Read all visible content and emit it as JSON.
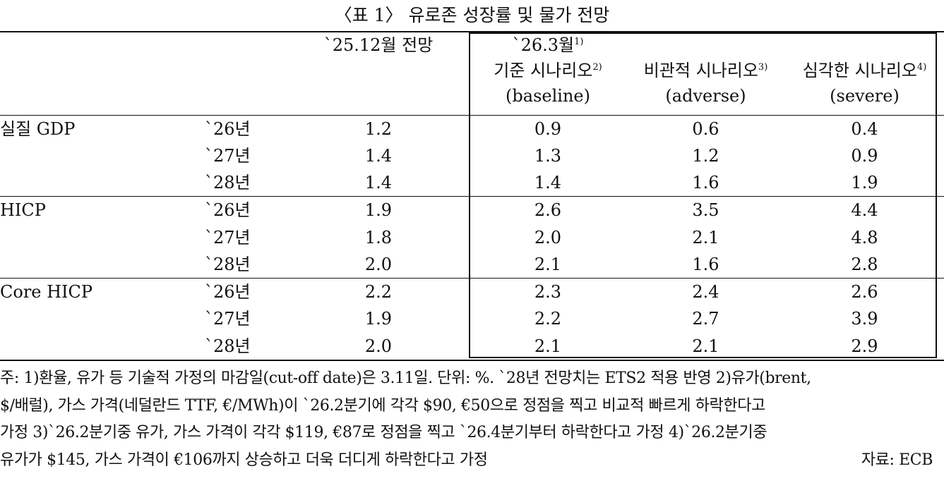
{
  "title": "〈표 1〉 유로존 성장률 및 물가 전망",
  "header": {
    "dec_forecast": "`25.12월 전망",
    "mar_forecast": "`26.3월",
    "mar_forecast_sup": "1)",
    "baseline_ko": "기준 시나리오",
    "baseline_sup": "2)",
    "baseline_en": "(baseline)",
    "adverse_ko": "비관적 시나리오",
    "adverse_sup": "3)",
    "adverse_en": "(adverse)",
    "severe_ko": "심각한 시나리오",
    "severe_sup": "4)",
    "severe_en": "(severe)"
  },
  "groups": [
    {
      "label": "실질 GDP",
      "rows": [
        {
          "year": "`26년",
          "dec": "1.2",
          "baseline": "0.9",
          "adverse": "0.6",
          "severe": "0.4"
        },
        {
          "year": "`27년",
          "dec": "1.4",
          "baseline": "1.3",
          "adverse": "1.2",
          "severe": "0.9"
        },
        {
          "year": "`28년",
          "dec": "1.4",
          "baseline": "1.4",
          "adverse": "1.6",
          "severe": "1.9"
        }
      ]
    },
    {
      "label": "HICP",
      "rows": [
        {
          "year": "`26년",
          "dec": "1.9",
          "baseline": "2.6",
          "adverse": "3.5",
          "severe": "4.4"
        },
        {
          "year": "`27년",
          "dec": "1.8",
          "baseline": "2.0",
          "adverse": "2.1",
          "severe": "4.8"
        },
        {
          "year": "`28년",
          "dec": "2.0",
          "baseline": "2.1",
          "adverse": "1.6",
          "severe": "2.8"
        }
      ]
    },
    {
      "label": "Core HICP",
      "rows": [
        {
          "year": "`26년",
          "dec": "2.2",
          "baseline": "2.3",
          "adverse": "2.4",
          "severe": "2.6"
        },
        {
          "year": "`27년",
          "dec": "1.9",
          "baseline": "2.2",
          "adverse": "2.7",
          "severe": "3.9"
        },
        {
          "year": "`28년",
          "dec": "2.0",
          "baseline": "2.1",
          "adverse": "2.1",
          "severe": "2.9"
        }
      ]
    }
  ],
  "notes": {
    "line1": "주: 1)환율, 유가 등 기술적 가정의 마감일(cut-off date)은 3.11일. 단위: %. `28년 전망치는 ETS2 적용 반영 2)유가(brent,",
    "line2": "$/배럴), 가스 가격(네덜란드 TTF, €/MWh)이 `26.2분기에 각각 $90, €50으로 정점을 찍고 비교적 빠르게 하락한다고",
    "line3": "가정 3)`26.2분기중 유가, 가스 가격이 각각 $119, €87로 정점을 찍고 `26.4분기부터 하락한다고 가정 4)`26.2분기중",
    "line4": "유가가 $145, 가스 가격이 €106까지 상승하고 더욱 더디게 하락한다고 가정",
    "source": "자료: ECB"
  }
}
